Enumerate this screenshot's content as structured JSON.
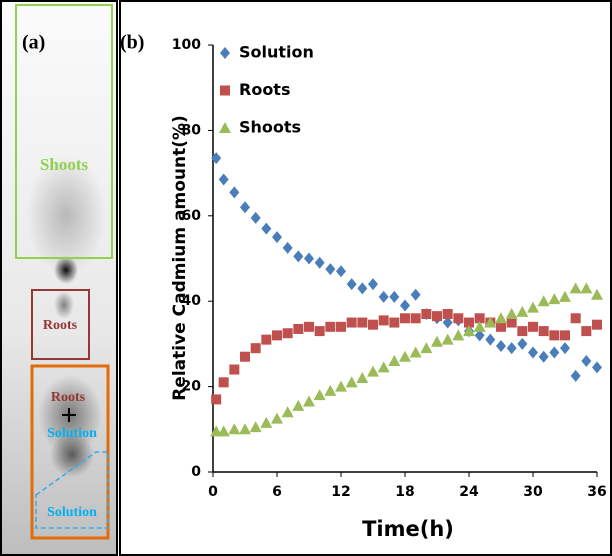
{
  "panel_a": {
    "label": "(a)",
    "shoots": "Shoots",
    "roots": "Roots",
    "roots_inner": "Roots",
    "solution_inner": "Solution",
    "solution_lower": "Solution"
  },
  "chart_data": {
    "type": "scatter",
    "panel_label": "(b)",
    "xlabel": "Time(h)",
    "ylabel": "Relative Cadmium amount(%)",
    "x": [
      0.3,
      1,
      2,
      3,
      4,
      5,
      6,
      7,
      8,
      9,
      10,
      11,
      12,
      13,
      14,
      15,
      16,
      17,
      18,
      19,
      20,
      21,
      22,
      23,
      24,
      25,
      26,
      27,
      28,
      29,
      30,
      31,
      32,
      33,
      34,
      35,
      36
    ],
    "series": [
      {
        "name": "Solution",
        "color": "#4a7ebb",
        "marker": "diamond",
        "values": [
          73.5,
          68.5,
          65.5,
          62,
          59.5,
          57,
          55,
          52.5,
          50.5,
          50,
          49,
          47.5,
          47,
          44,
          43,
          44,
          41,
          41,
          39,
          41.5,
          37,
          36,
          35,
          35.5,
          33,
          32,
          31,
          29.5,
          29,
          30,
          28,
          27,
          28,
          29,
          22.5,
          26,
          24.5
        ]
      },
      {
        "name": "Roots",
        "color": "#c0504d",
        "marker": "square",
        "values": [
          17,
          21,
          24,
          27,
          29,
          31,
          32,
          32.5,
          33.5,
          34,
          33,
          34,
          34,
          35,
          35,
          34.5,
          35.5,
          35,
          36,
          36,
          37,
          36.5,
          37,
          36,
          35,
          36,
          35,
          34,
          35,
          33,
          34,
          33,
          32,
          32,
          36,
          33,
          34.5
        ]
      },
      {
        "name": "Shoots",
        "color": "#9bbb59",
        "marker": "triangle",
        "values": [
          9.5,
          9.5,
          10,
          10,
          10.5,
          11.5,
          12.5,
          14,
          15.5,
          16.5,
          18,
          19,
          20,
          21,
          22,
          23.5,
          24.5,
          26,
          27,
          28,
          29,
          30.5,
          31,
          32,
          33,
          34,
          35,
          36,
          37,
          37.5,
          38.5,
          40,
          40.5,
          41,
          43,
          43,
          41.5
        ]
      }
    ],
    "xlim": [
      0,
      36
    ],
    "ylim": [
      0,
      100
    ],
    "xticks": [
      0,
      6,
      12,
      18,
      24,
      30,
      36
    ],
    "yticks": [
      0,
      20,
      40,
      60,
      80,
      100
    ],
    "legend": "upper left"
  }
}
